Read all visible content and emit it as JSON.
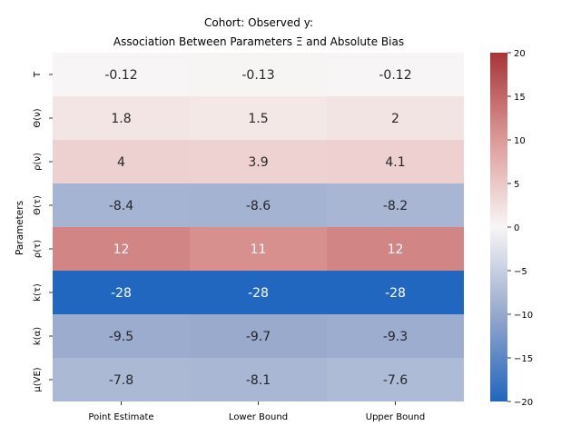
{
  "chart_data": {
    "type": "heatmap",
    "title_line1": "Cohort: Observed y:",
    "title_line2": "Association Between Parameters Ξ and Absolute Bias",
    "ylabel": "Parameters",
    "xlabel": "",
    "columns": [
      "Point Estimate",
      "Lower Bound",
      "Upper Bound"
    ],
    "rows": [
      "T",
      "Θ(ν)",
      "ρ(ν)",
      "Θ(τ)",
      "ρ(τ)",
      "k(τ)",
      "k(α)",
      "μ(VE)"
    ],
    "values": [
      [
        -0.12,
        -0.13,
        -0.12
      ],
      [
        1.8,
        1.5,
        2.0
      ],
      [
        4.0,
        3.9,
        4.1
      ],
      [
        -8.4,
        -8.6,
        -8.2
      ],
      [
        12,
        11,
        12
      ],
      [
        -28,
        -28,
        -28
      ],
      [
        -9.5,
        -9.7,
        -9.3
      ],
      [
        -7.8,
        -8.1,
        -7.6
      ]
    ],
    "labels": [
      [
        "-0.12",
        "-0.13",
        "-0.12"
      ],
      [
        "1.8",
        "1.5",
        "2"
      ],
      [
        "4",
        "3.9",
        "4.1"
      ],
      [
        "-8.4",
        "-8.6",
        "-8.2"
      ],
      [
        "12",
        "11",
        "12"
      ],
      [
        "-28",
        "-28",
        "-28"
      ],
      [
        "-9.5",
        "-9.7",
        "-9.3"
      ],
      [
        "-7.8",
        "-8.1",
        "-7.6"
      ]
    ],
    "colormap": "vlag",
    "color_range": [
      -20,
      20
    ],
    "colorbar_ticks": [
      "20",
      "15",
      "10",
      "5",
      "0",
      "−5",
      "−10",
      "−15",
      "−20"
    ],
    "colorbar_tick_values": [
      20,
      15,
      10,
      5,
      0,
      -5,
      -10,
      -15,
      -20
    ]
  }
}
